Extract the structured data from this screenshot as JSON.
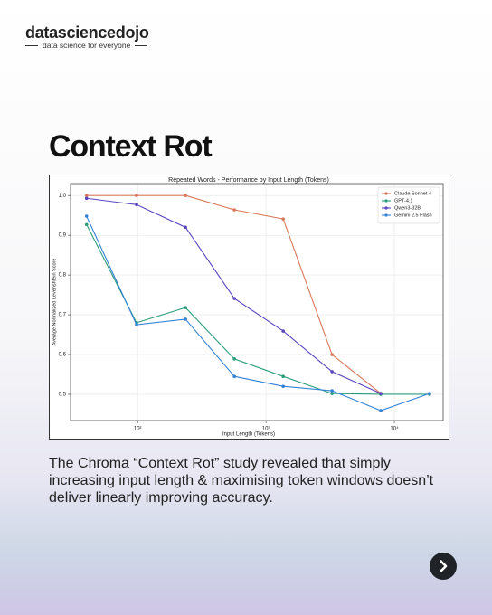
{
  "header": {
    "brand": "datasciencedojo",
    "tagline": "data science for everyone"
  },
  "title": "Context Rot",
  "body": "The Chroma “Context Rot” study revealed that simply increasing input length & maximising token windows doesn’t deliver linearly improving accuracy.",
  "chart_data": {
    "type": "line",
    "title": "Repeated Words - Performance by Input Length (Tokens)",
    "x_label": "Input Length (Tokens)",
    "y_label": "Average Normalized Levenshtein Score",
    "x": [
      40,
      98,
      236,
      567,
      1362,
      3268,
      7838,
      18800
    ],
    "xscale": "log",
    "xlim": [
      30,
      24000
    ],
    "xticks": [
      {
        "value": 100,
        "label": "10²"
      },
      {
        "value": 1000,
        "label": "10³"
      },
      {
        "value": 10000,
        "label": "10⁴"
      }
    ],
    "ylim": [
      0.434,
      1.03
    ],
    "yticks": [
      0.5,
      0.6,
      0.7,
      0.8,
      0.9,
      {
        "value": 1,
        "label": "1.0"
      }
    ],
    "grid": true,
    "legend": "upper right",
    "series": [
      {
        "name": "Claude Sonnet 4",
        "color": "#d9785a",
        "values": [
          1.0,
          1.0,
          1.0,
          0.964,
          0.941,
          0.6,
          0.502,
          null
        ]
      },
      {
        "name": "GPT-4.1",
        "color": "#2a9d7c",
        "values": [
          0.927,
          0.68,
          0.718,
          0.589,
          0.545,
          0.502,
          0.5,
          0.5
        ]
      },
      {
        "name": "Qwen3-32B",
        "color": "#5b44c0",
        "values": [
          0.993,
          0.977,
          0.92,
          0.741,
          0.659,
          0.557,
          0.502,
          null
        ]
      },
      {
        "name": "Gemini 2.5 Flash",
        "color": "#3382d6",
        "values": [
          0.948,
          0.675,
          0.689,
          0.545,
          0.52,
          0.509,
          0.459,
          0.502
        ]
      }
    ]
  }
}
